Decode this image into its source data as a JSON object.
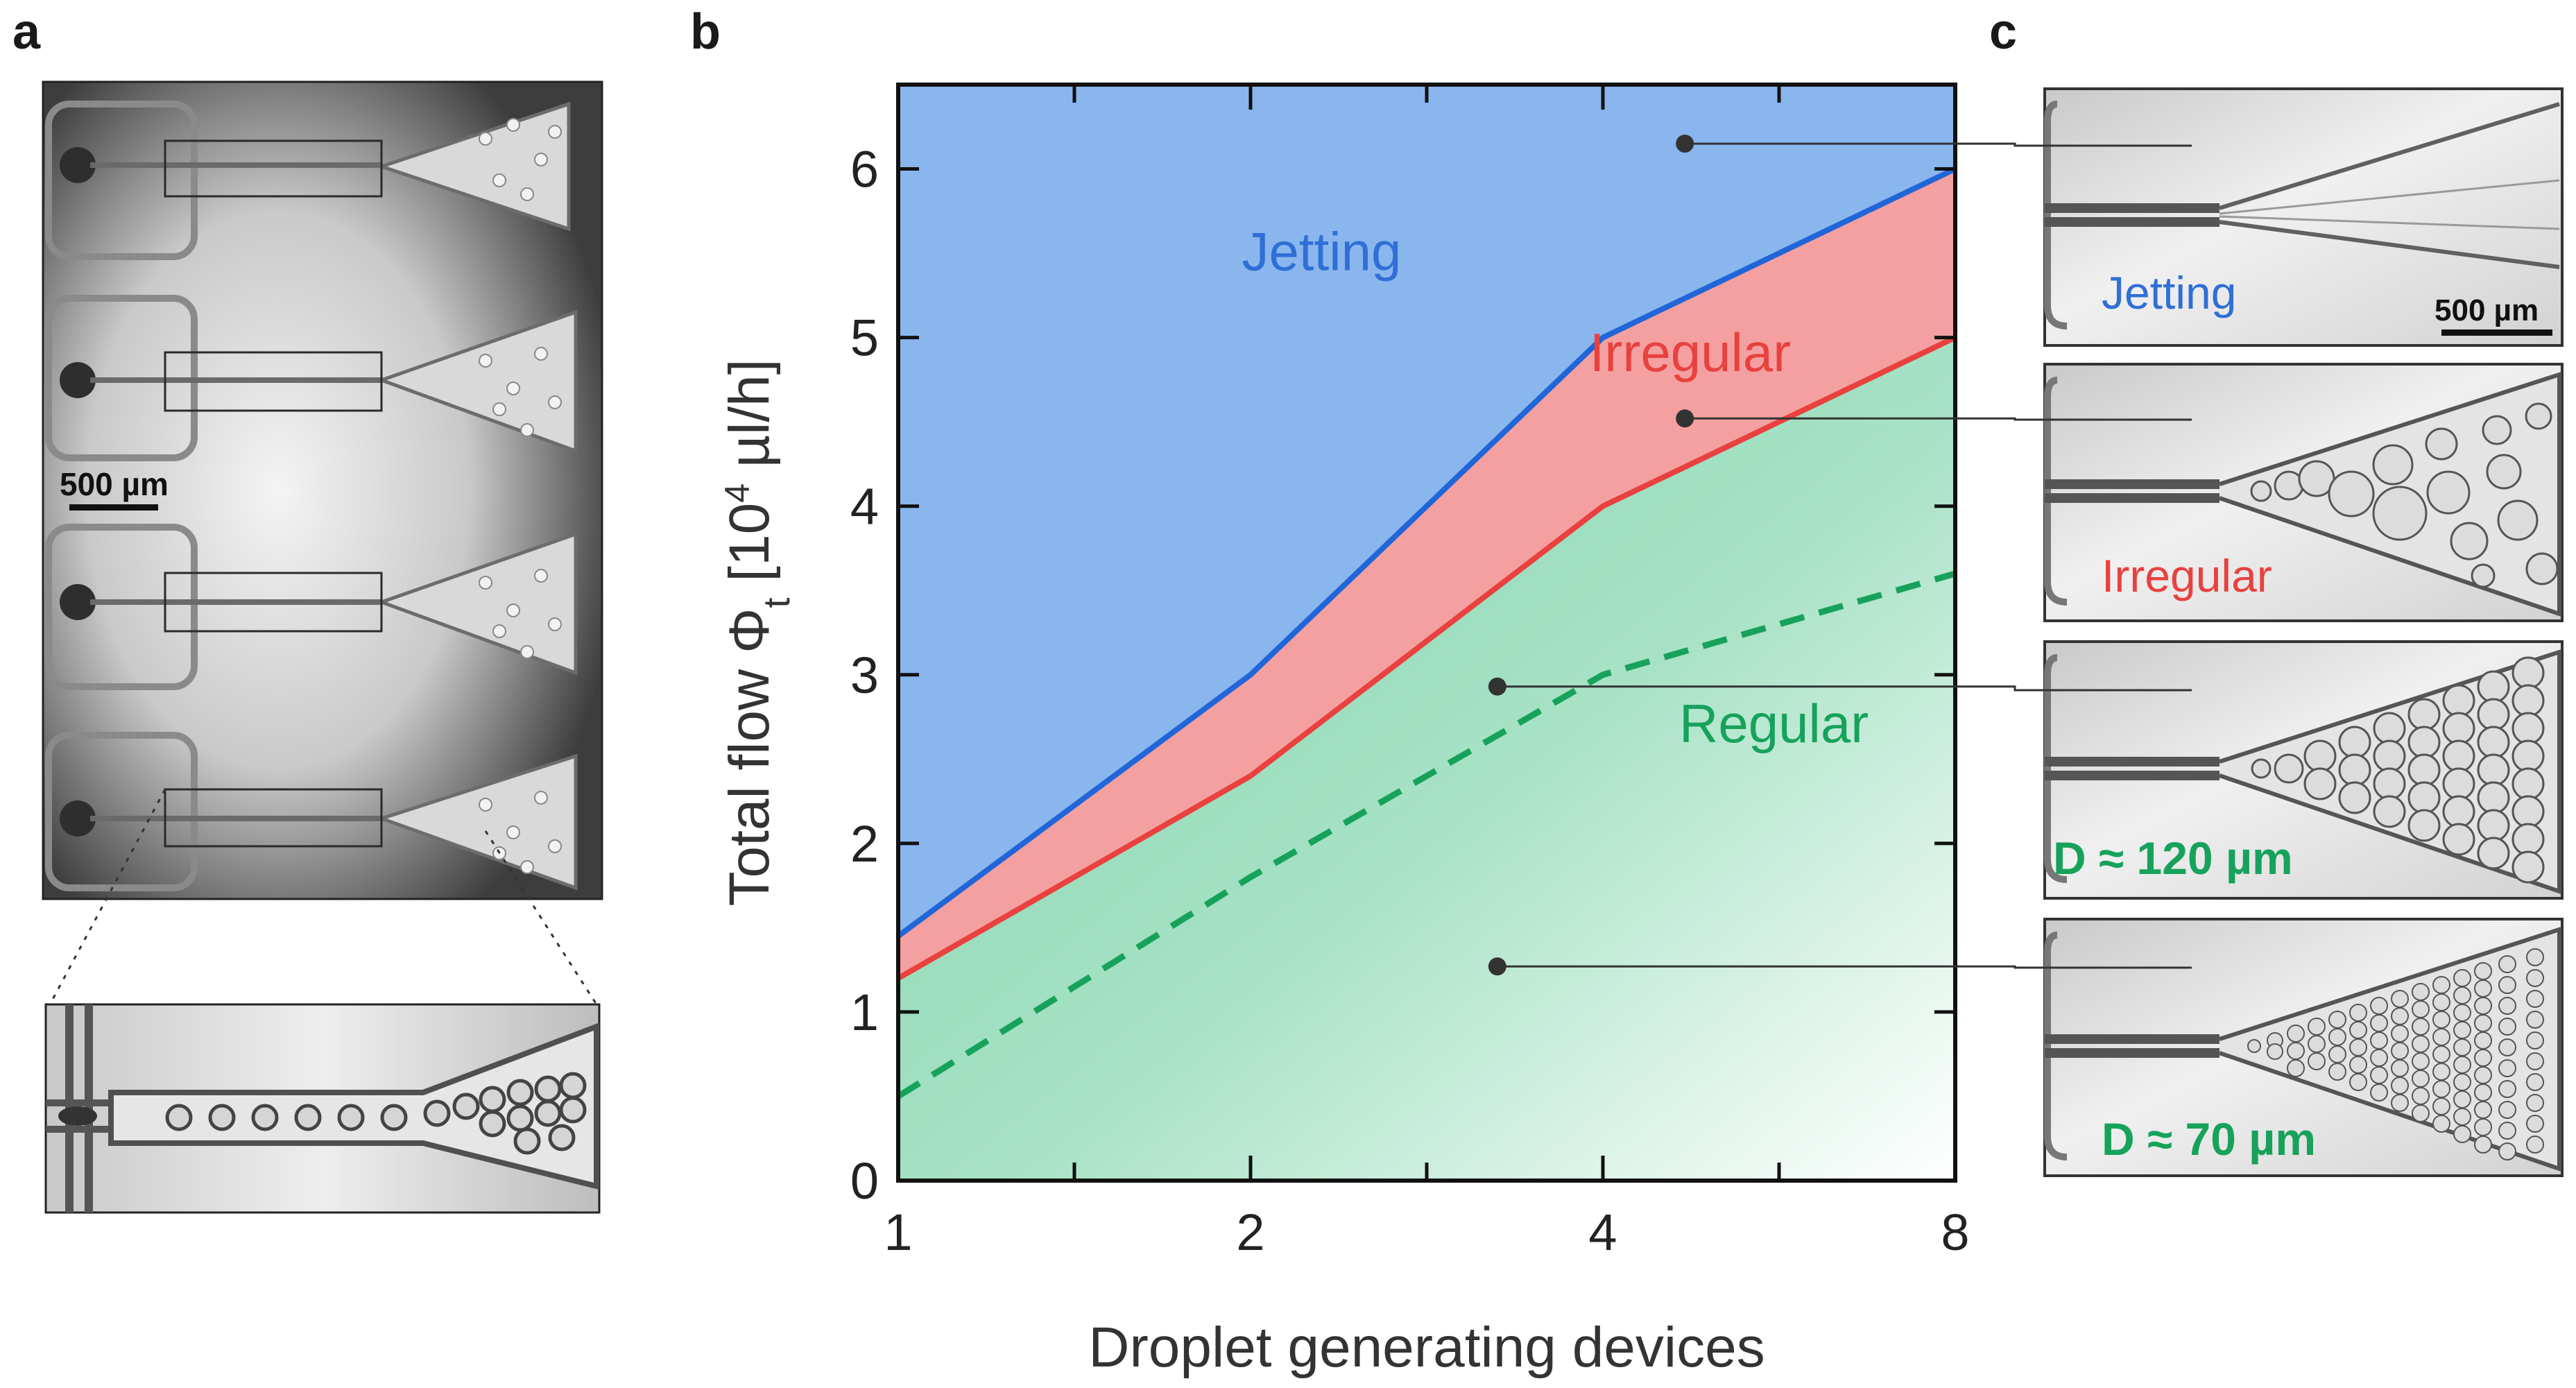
{
  "panels": {
    "a": {
      "label": "a",
      "scale_bar": "500 µm"
    },
    "b": {
      "label": "b"
    },
    "c": {
      "label": "c",
      "scale_bar": "500 µm",
      "images": [
        {
          "text": "Jetting",
          "color": "#2f6fd6"
        },
        {
          "text": "Irregular",
          "color": "#e8413f"
        },
        {
          "text": "D ≈ 120 µm",
          "color": "#17a25c"
        },
        {
          "text": "D ≈ 70 µm",
          "color": "#17a25c"
        }
      ]
    }
  },
  "chart_data": {
    "type": "area",
    "title": "",
    "xlabel": "Droplet generating devices",
    "ylabel_main": "Total flow Φ",
    "ylabel_sub": "t",
    "ylabel_unit_pre": "  [10",
    "ylabel_exp": "4",
    "ylabel_unit_post": " µl/h]",
    "x_scale": "log2",
    "xlim": [
      1,
      8
    ],
    "ylim": [
      0,
      6.5
    ],
    "x_ticks_major": [
      1,
      2,
      4,
      8
    ],
    "x_tick_labels": [
      "1",
      "2",
      "4",
      "8"
    ],
    "x_ticks_minor": [
      1.4142,
      2.8284,
      5.6569
    ],
    "y_ticks": [
      0,
      1,
      2,
      3,
      4,
      5,
      6
    ],
    "y_tick_labels": [
      "0",
      "1",
      "2",
      "3",
      "4",
      "5",
      "6"
    ],
    "series": [
      {
        "name": "Jetting boundary",
        "x": [
          1,
          2,
          4,
          8
        ],
        "y": [
          1.45,
          3.0,
          5.0,
          6.0
        ],
        "color": "#2166d8",
        "style": "solid"
      },
      {
        "name": "Irregular boundary",
        "x": [
          1,
          2,
          4,
          8
        ],
        "y": [
          1.2,
          2.4,
          4.0,
          5.0
        ],
        "color": "#e8413f",
        "style": "solid"
      },
      {
        "name": "Dashed boundary",
        "x": [
          1,
          2,
          4,
          8
        ],
        "y": [
          0.5,
          1.8,
          3.0,
          3.6
        ],
        "color": "#17a25c",
        "style": "dashed"
      }
    ],
    "regions": [
      {
        "name": "Jetting",
        "color": "#2f6fd6",
        "fill": "#8ab6ee",
        "label_x": 2.3,
        "label_y": 5.4
      },
      {
        "name": "Irregular",
        "color": "#e8413f",
        "fill": "#f5a0a0",
        "label_x": 4.75,
        "label_y": 4.8
      },
      {
        "name": "Regular",
        "color": "#17a25c",
        "fill": "#7dd3ac",
        "label_x": 5.6,
        "label_y": 2.6
      }
    ],
    "markers": [
      {
        "x": 4.7,
        "y": 6.15
      },
      {
        "x": 4.7,
        "y": 4.52
      },
      {
        "x": 3.25,
        "y": 2.93
      },
      {
        "x": 3.25,
        "y": 1.27
      }
    ]
  }
}
